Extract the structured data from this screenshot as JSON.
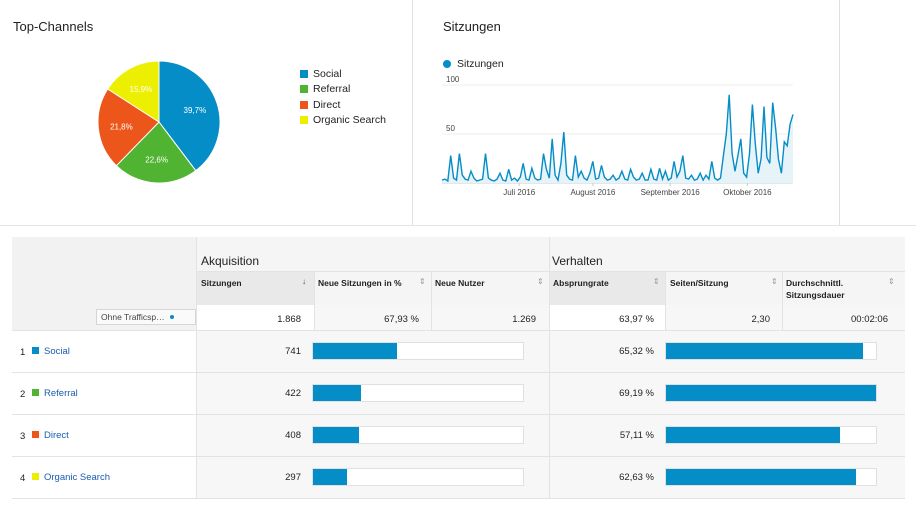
{
  "pie_panel": {
    "title": "Top-Channels"
  },
  "line_panel": {
    "title": "Sitzungen",
    "legend": "Sitzungen"
  },
  "colors": {
    "social": "#058dc7",
    "referral": "#50b432",
    "direct": "#ed561b",
    "organic": "#edef00"
  },
  "chart_data": [
    {
      "type": "pie",
      "title": "Top-Channels",
      "slices": [
        {
          "name": "Social",
          "value": 39.7,
          "label": "39,7%",
          "color": "#058dc7"
        },
        {
          "name": "Referral",
          "value": 22.6,
          "label": "22,6%",
          "color": "#50b432"
        },
        {
          "name": "Direct",
          "value": 21.8,
          "label": "21,8%",
          "color": "#ed561b"
        },
        {
          "name": "Organic Search",
          "value": 15.9,
          "label": "15,9%",
          "color": "#edef00"
        }
      ],
      "legend": "right"
    },
    {
      "type": "area",
      "title": "Sitzungen",
      "series": [
        {
          "name": "Sitzungen",
          "color": "#058dc7",
          "values": [
            3,
            4,
            2,
            28,
            5,
            3,
            30,
            8,
            4,
            3,
            12,
            5,
            2,
            3,
            4,
            30,
            5,
            3,
            2,
            4,
            10,
            3,
            2,
            14,
            3,
            5,
            2,
            6,
            20,
            4,
            3,
            15,
            5,
            3,
            4,
            30,
            14,
            5,
            45,
            8,
            3,
            20,
            52,
            8,
            4,
            3,
            28,
            6,
            12,
            5,
            3,
            10,
            22,
            4,
            5,
            18,
            6,
            3,
            4,
            8,
            3,
            5,
            12,
            4,
            3,
            14,
            6,
            3,
            4,
            10,
            3,
            3,
            14,
            4,
            3,
            15,
            4,
            12,
            3,
            5,
            22,
            6,
            12,
            28,
            5,
            4,
            8,
            3,
            4,
            10,
            3,
            8,
            4,
            22,
            5,
            3,
            5,
            28,
            50,
            90,
            30,
            12,
            28,
            45,
            10,
            6,
            30,
            80,
            40,
            10,
            25,
            78,
            26,
            20,
            82,
            56,
            24,
            10,
            42,
            38,
            60,
            70
          ]
        }
      ],
      "yticks": [
        50,
        100
      ],
      "ylim": [
        0,
        100
      ],
      "xtick_labels": [
        "Juli 2016",
        "August 2016",
        "September 2016",
        "Oktober 2016"
      ],
      "legend": "top-left"
    }
  ],
  "table": {
    "group1": "Akquisition",
    "group2": "Verhalten",
    "filter_label": "Ohne Trafficsp…",
    "columns": [
      "Sitzungen",
      "Neue Sitzungen in %",
      "Neue Nutzer",
      "Absprungrate",
      "Seiten/Sitzung",
      "Durchschnittl. Sitzungsdauer"
    ],
    "totals": {
      "sessions": "1.868",
      "new_pct": "67,93 %",
      "new_users": "1.269",
      "bounce": "63,97 %",
      "pages": "2,30",
      "duration": "00:02:06"
    },
    "rows": [
      {
        "rank": "1",
        "channel": "Social",
        "color": "#058dc7",
        "sessions": "741",
        "new_frac": 0.4,
        "bounce": "65,32 %",
        "bounce_frac": 0.94
      },
      {
        "rank": "2",
        "channel": "Referral",
        "color": "#50b432",
        "sessions": "422",
        "new_frac": 0.23,
        "bounce": "69,19 %",
        "bounce_frac": 1.0
      },
      {
        "rank": "3",
        "channel": "Direct",
        "color": "#ed561b",
        "sessions": "408",
        "new_frac": 0.22,
        "bounce": "57,11 %",
        "bounce_frac": 0.83
      },
      {
        "rank": "4",
        "channel": "Organic Search",
        "color": "#edef00",
        "sessions": "297",
        "new_frac": 0.16,
        "bounce": "62,63 %",
        "bounce_frac": 0.905
      }
    ]
  }
}
